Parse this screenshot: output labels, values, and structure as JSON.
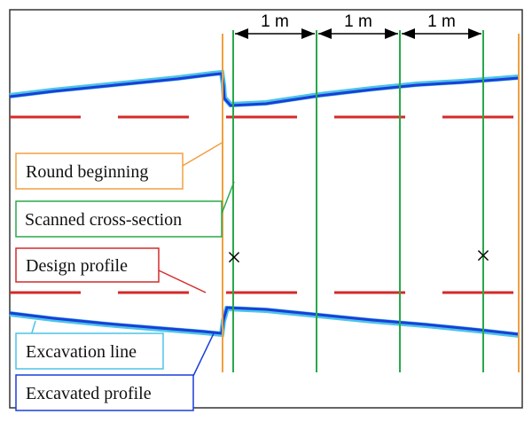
{
  "dimensions": {
    "spacing_labels": [
      "1 m",
      "1 m",
      "1 m"
    ]
  },
  "legend": {
    "round_beginning": "Round beginning",
    "scanned_cross_section": "Scanned cross-section",
    "design_profile": "Design profile",
    "excavation_line": "Excavation line",
    "excavated_profile": "Excavated profile"
  },
  "markers": [
    "×",
    "×"
  ],
  "colors": {
    "round_beginning": "#f0a040",
    "scanned_cross_section": "#2aa84a",
    "design_profile": "#d42a2a",
    "excavation_line": "#4cc4e8",
    "excavated_profile": "#1a3fd8",
    "frame": "#333333"
  }
}
